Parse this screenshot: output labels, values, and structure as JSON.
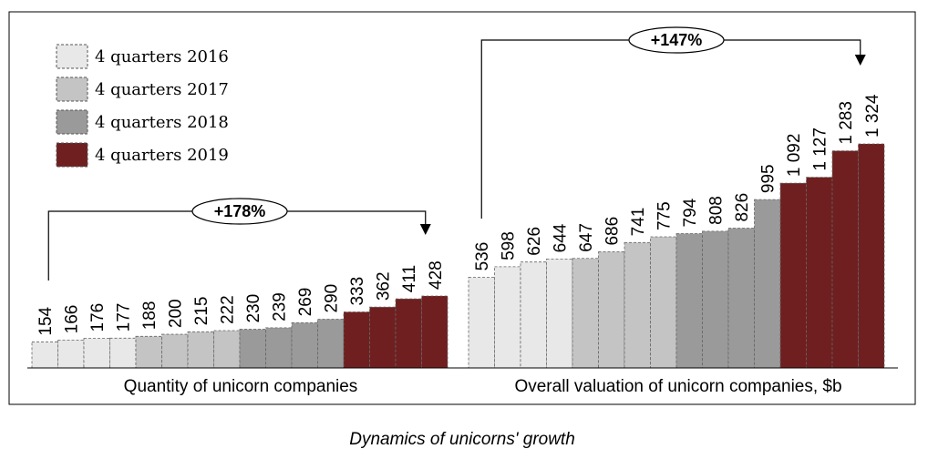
{
  "caption": "Dynamics of unicorns' growth",
  "legend": [
    {
      "label": "4 quarters 2016",
      "color": "#e8e8e8"
    },
    {
      "label": "4 quarters 2017",
      "color": "#c4c4c4"
    },
    {
      "label": "4 quarters 2018",
      "color": "#9a9a9a"
    },
    {
      "label": "4 quarters 2019",
      "color": "#6f1f1f"
    }
  ],
  "chart_data": [
    {
      "type": "bar",
      "xlabel": "Quantity of unicorn companies",
      "growth_label": "+178%",
      "values": [
        154,
        166,
        176,
        177,
        188,
        200,
        215,
        222,
        230,
        239,
        269,
        290,
        333,
        362,
        411,
        428
      ],
      "labels": [
        "154",
        "166",
        "176",
        "177",
        "188",
        "200",
        "215",
        "222",
        "230",
        "239",
        "269",
        "290",
        "333",
        "362",
        "411",
        "428"
      ],
      "year_index": [
        0,
        0,
        0,
        0,
        1,
        1,
        1,
        1,
        2,
        2,
        2,
        2,
        3,
        3,
        3,
        3
      ]
    },
    {
      "type": "bar",
      "xlabel": "Overall valuation of unicorn companies, $b",
      "growth_label": "+147%",
      "values": [
        536,
        598,
        626,
        644,
        647,
        686,
        741,
        775,
        794,
        808,
        826,
        995,
        1092,
        1127,
        1283,
        1324
      ],
      "labels": [
        "536",
        "598",
        "626",
        "644",
        "647",
        "686",
        "741",
        "775",
        "794",
        "808",
        "826",
        "995",
        "1 092",
        "1 127",
        "1 283",
        "1 324"
      ],
      "year_index": [
        0,
        0,
        0,
        0,
        1,
        1,
        1,
        1,
        2,
        2,
        2,
        2,
        3,
        3,
        3,
        3
      ]
    }
  ]
}
